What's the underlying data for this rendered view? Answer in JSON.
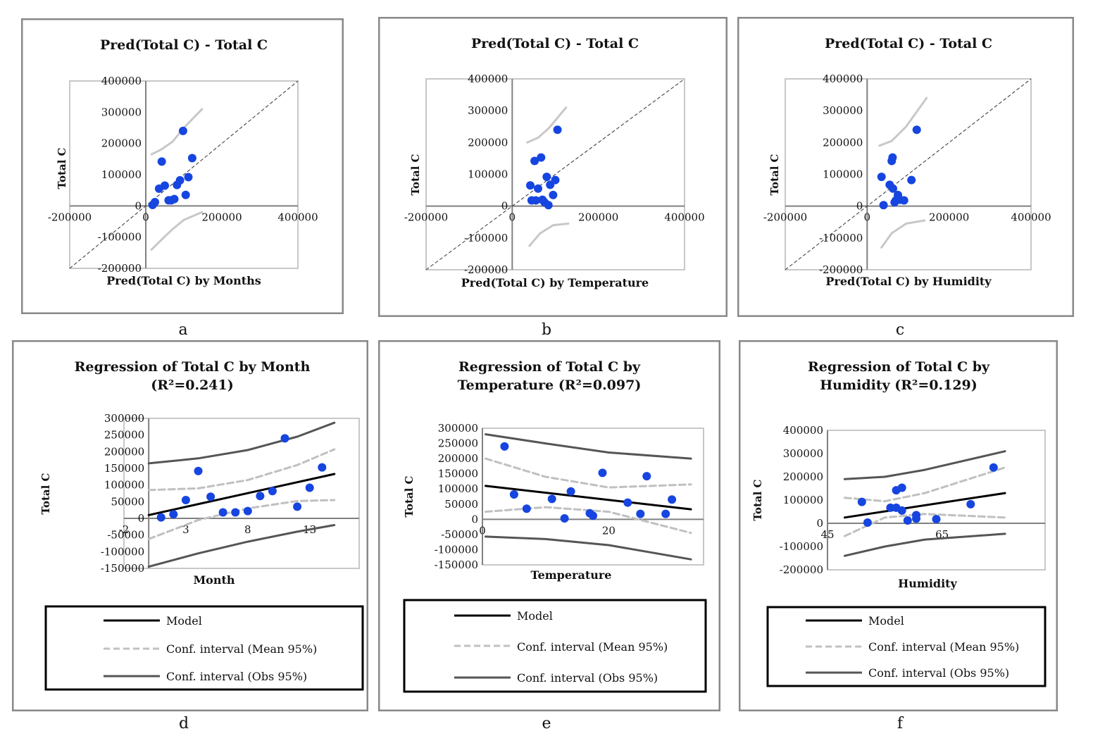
{
  "panels": [
    {
      "id": "a",
      "caption": "a",
      "kind": "pred",
      "title_lines": [
        "Pred(Total C) - Total C"
      ],
      "xlabel": "Pred(Total C)  by Months",
      "ylabel": "Total C",
      "x_ticks": [
        "-200000",
        "0",
        "200000",
        "400000"
      ],
      "y_ticks": [
        "400000",
        "300000",
        "200000",
        "100000",
        "0",
        "-100000",
        "-200000"
      ]
    },
    {
      "id": "b",
      "caption": "b",
      "kind": "pred",
      "title_lines": [
        "Pred(Total C) - Total C"
      ],
      "xlabel": "Pred(Total C) by Temperature",
      "ylabel": "Total C",
      "x_ticks": [
        "-200000",
        "0",
        "200000",
        "400000"
      ],
      "y_ticks": [
        "400000",
        "300000",
        "200000",
        "100000",
        "0",
        "-100000",
        "-200000"
      ]
    },
    {
      "id": "c",
      "caption": "c",
      "kind": "pred",
      "title_lines": [
        "Pred(Total C) - Total C"
      ],
      "xlabel": "Pred(Total C) by Humidity",
      "ylabel": "Total C",
      "x_ticks": [
        "-200000",
        "0",
        "200000",
        "400000"
      ],
      "y_ticks": [
        "400000",
        "300000",
        "200000",
        "100000",
        "0",
        "-100000",
        "-200000"
      ]
    },
    {
      "id": "d",
      "caption": "d",
      "kind": "reg",
      "title_lines": [
        "Regression of Total C by Month",
        "(R²=0.241)"
      ],
      "xlabel": "Month",
      "ylabel": "Total C",
      "x_ticks": [
        "-2",
        "3",
        "8",
        "13"
      ],
      "y_ticks": [
        "300000",
        "250000",
        "200000",
        "150000",
        "100000",
        "50000",
        "0",
        "-50000",
        "-100000",
        "-150000"
      ],
      "legend": [
        "Model",
        "Conf. interval (Mean 95%)",
        "Conf. interval (Obs 95%)"
      ]
    },
    {
      "id": "e",
      "caption": "e",
      "kind": "reg",
      "title_lines": [
        "Regression of Total C by",
        "Temperature (R²=0.097)"
      ],
      "xlabel": "Temperature",
      "ylabel": "Total C",
      "x_ticks": [
        "0",
        "20"
      ],
      "y_ticks": [
        "300000",
        "250000",
        "200000",
        "150000",
        "100000",
        "50000",
        "0",
        "-50000",
        "-100000",
        "-150000"
      ],
      "legend": [
        "Model",
        "Conf. interval (Mean 95%)",
        "Conf. interval (Obs 95%)"
      ]
    },
    {
      "id": "f",
      "caption": "f",
      "kind": "reg",
      "title_lines": [
        "Regression of Total C by",
        "Humidity (R²=0.129)"
      ],
      "xlabel": "Humidity",
      "ylabel": "Total C",
      "x_ticks": [
        "45",
        "65"
      ],
      "y_ticks": [
        "400000",
        "300000",
        "200000",
        "100000",
        "0",
        "-100000",
        "-200000"
      ],
      "legend": [
        "Model",
        "Conf. interval (Mean 95%)",
        "Conf. interval (Obs 95%)"
      ]
    }
  ],
  "colors": {
    "points": "#1645e0",
    "model": "#000000",
    "mean_ci": "#c0c0c0",
    "obs_ci": "#555555",
    "pred_ci": "#c8c8c8"
  },
  "chart_data": [
    {
      "panel": "a",
      "type": "scatter",
      "title": "Pred(Total C) - Total C",
      "xlabel": "Pred(Total C)  by Months",
      "ylabel": "Total C",
      "xlim": [
        -200000,
        400000
      ],
      "ylim": [
        -200000,
        400000
      ],
      "grid": false,
      "reference_line": "y = x (dashed)",
      "points": [
        {
          "x": 18000,
          "y": 3000
        },
        {
          "x": 24000,
          "y": 12000
        },
        {
          "x": 35000,
          "y": 55000
        },
        {
          "x": 42000,
          "y": 142000
        },
        {
          "x": 50000,
          "y": 65000
        },
        {
          "x": 60000,
          "y": 18000
        },
        {
          "x": 67000,
          "y": 18000
        },
        {
          "x": 75000,
          "y": 22000
        },
        {
          "x": 82000,
          "y": 67000
        },
        {
          "x": 90000,
          "y": 82000
        },
        {
          "x": 98000,
          "y": 240000
        },
        {
          "x": 105000,
          "y": 35000
        },
        {
          "x": 112000,
          "y": 92000
        },
        {
          "x": 122000,
          "y": 153000
        }
      ],
      "ci_upper": [
        {
          "x": 15000,
          "y": 165000
        },
        {
          "x": 40000,
          "y": 180000
        },
        {
          "x": 70000,
          "y": 205000
        },
        {
          "x": 100000,
          "y": 250000
        },
        {
          "x": 148000,
          "y": 310000
        }
      ],
      "ci_lower": [
        {
          "x": 15000,
          "y": -140000
        },
        {
          "x": 40000,
          "y": -110000
        },
        {
          "x": 70000,
          "y": -75000
        },
        {
          "x": 100000,
          "y": -45000
        },
        {
          "x": 148000,
          "y": -20000
        }
      ]
    },
    {
      "panel": "b",
      "type": "scatter",
      "title": "Pred(Total C) - Total C",
      "xlabel": "Pred(Total C) by Temperature",
      "ylabel": "Total C",
      "xlim": [
        -200000,
        400000
      ],
      "ylim": [
        -200000,
        400000
      ],
      "grid": false,
      "reference_line": "y = x (dashed)",
      "points": [
        {
          "x": 42000,
          "y": 65000
        },
        {
          "x": 45000,
          "y": 18000
        },
        {
          "x": 52000,
          "y": 142000
        },
        {
          "x": 55000,
          "y": 18000
        },
        {
          "x": 60000,
          "y": 55000
        },
        {
          "x": 67000,
          "y": 153000
        },
        {
          "x": 70000,
          "y": 20000
        },
        {
          "x": 75000,
          "y": 12000
        },
        {
          "x": 80000,
          "y": 92000
        },
        {
          "x": 84000,
          "y": 3000
        },
        {
          "x": 88000,
          "y": 67000
        },
        {
          "x": 95000,
          "y": 35000
        },
        {
          "x": 100000,
          "y": 82000
        },
        {
          "x": 105000,
          "y": 240000
        }
      ],
      "ci_upper": [
        {
          "x": 35000,
          "y": 200000
        },
        {
          "x": 60000,
          "y": 215000
        },
        {
          "x": 85000,
          "y": 245000
        },
        {
          "x": 125000,
          "y": 310000
        }
      ],
      "ci_lower": [
        {
          "x": 40000,
          "y": -125000
        },
        {
          "x": 65000,
          "y": -85000
        },
        {
          "x": 95000,
          "y": -60000
        },
        {
          "x": 130000,
          "y": -55000
        }
      ]
    },
    {
      "panel": "c",
      "type": "scatter",
      "title": "Pred(Total C) - Total C",
      "xlabel": "Pred(Total C) by Humidity",
      "ylabel": "Total C",
      "xlim": [
        -200000,
        400000
      ],
      "ylim": [
        -200000,
        400000
      ],
      "grid": false,
      "reference_line": "y = x (dashed)",
      "points": [
        {
          "x": 35000,
          "y": 92000
        },
        {
          "x": 40000,
          "y": 3000
        },
        {
          "x": 55000,
          "y": 67000
        },
        {
          "x": 60000,
          "y": 142000
        },
        {
          "x": 62000,
          "y": 153000
        },
        {
          "x": 63000,
          "y": 55000
        },
        {
          "x": 67000,
          "y": 12000
        },
        {
          "x": 70000,
          "y": 18000
        },
        {
          "x": 75000,
          "y": 35000
        },
        {
          "x": 80000,
          "y": 20000
        },
        {
          "x": 90000,
          "y": 18000
        },
        {
          "x": 108000,
          "y": 82000
        },
        {
          "x": 121000,
          "y": 240000
        }
      ],
      "ci_upper": [
        {
          "x": 30000,
          "y": 190000
        },
        {
          "x": 60000,
          "y": 205000
        },
        {
          "x": 95000,
          "y": 250000
        },
        {
          "x": 145000,
          "y": 340000
        }
      ],
      "ci_lower": [
        {
          "x": 35000,
          "y": -130000
        },
        {
          "x": 60000,
          "y": -85000
        },
        {
          "x": 95000,
          "y": -55000
        },
        {
          "x": 140000,
          "y": -45000
        }
      ]
    },
    {
      "panel": "d",
      "type": "scatter",
      "title": "Regression of Total C by Month (R²=0.241)",
      "xlabel": "Month",
      "ylabel": "Total C",
      "xlim": [
        -2,
        17
      ],
      "ylim": [
        -150000,
        300000
      ],
      "grid": false,
      "legend_position": "bottom",
      "points": [
        {
          "x": 1,
          "y": 3000
        },
        {
          "x": 2,
          "y": 12000
        },
        {
          "x": 3,
          "y": 55000
        },
        {
          "x": 4,
          "y": 142000
        },
        {
          "x": 5,
          "y": 65000
        },
        {
          "x": 6,
          "y": 18000
        },
        {
          "x": 7,
          "y": 18000
        },
        {
          "x": 8,
          "y": 22000
        },
        {
          "x": 9,
          "y": 67000
        },
        {
          "x": 10,
          "y": 82000
        },
        {
          "x": 11,
          "y": 240000
        },
        {
          "x": 12,
          "y": 35000
        },
        {
          "x": 13,
          "y": 92000
        },
        {
          "x": 14,
          "y": 153000
        }
      ],
      "model": [
        {
          "x": 0,
          "y": 10000
        },
        {
          "x": 15,
          "y": 133000
        }
      ],
      "mean_ci_upper": [
        {
          "x": 0,
          "y": 85000
        },
        {
          "x": 4,
          "y": 90000
        },
        {
          "x": 8,
          "y": 115000
        },
        {
          "x": 12,
          "y": 160000
        },
        {
          "x": 15,
          "y": 207000
        }
      ],
      "mean_ci_lower": [
        {
          "x": 0,
          "y": -62000
        },
        {
          "x": 4,
          "y": -5000
        },
        {
          "x": 8,
          "y": 30000
        },
        {
          "x": 12,
          "y": 52000
        },
        {
          "x": 15,
          "y": 55000
        }
      ],
      "obs_ci_upper": [
        {
          "x": 0,
          "y": 165000
        },
        {
          "x": 4,
          "y": 180000
        },
        {
          "x": 8,
          "y": 205000
        },
        {
          "x": 12,
          "y": 245000
        },
        {
          "x": 15,
          "y": 287000
        }
      ],
      "obs_ci_lower": [
        {
          "x": 0,
          "y": -145000
        },
        {
          "x": 4,
          "y": -105000
        },
        {
          "x": 8,
          "y": -70000
        },
        {
          "x": 12,
          "y": -40000
        },
        {
          "x": 15,
          "y": -20000
        }
      ]
    },
    {
      "panel": "e",
      "type": "scatter",
      "title": "Regression of Total C by Temperature (R²=0.097)",
      "xlabel": "Temperature",
      "ylabel": "Total C",
      "xlim": [
        0,
        35
      ],
      "ylim": [
        -150000,
        300000
      ],
      "grid": false,
      "legend_position": "bottom",
      "points": [
        {
          "x": 3.5,
          "y": 240000
        },
        {
          "x": 5,
          "y": 82000
        },
        {
          "x": 7,
          "y": 35000
        },
        {
          "x": 11,
          "y": 67000
        },
        {
          "x": 13,
          "y": 3000
        },
        {
          "x": 14,
          "y": 92000
        },
        {
          "x": 17,
          "y": 20000
        },
        {
          "x": 17.5,
          "y": 12000
        },
        {
          "x": 19,
          "y": 153000
        },
        {
          "x": 23,
          "y": 55000
        },
        {
          "x": 25,
          "y": 18000
        },
        {
          "x": 26,
          "y": 142000
        },
        {
          "x": 29,
          "y": 18000
        },
        {
          "x": 30,
          "y": 65000
        }
      ],
      "model": [
        {
          "x": 0.5,
          "y": 110000
        },
        {
          "x": 33,
          "y": 33000
        }
      ],
      "mean_ci_upper": [
        {
          "x": 0.5,
          "y": 200000
        },
        {
          "x": 10,
          "y": 140000
        },
        {
          "x": 20,
          "y": 105000
        },
        {
          "x": 33,
          "y": 115000
        }
      ],
      "mean_ci_lower": [
        {
          "x": 0.5,
          "y": 25000
        },
        {
          "x": 10,
          "y": 40000
        },
        {
          "x": 20,
          "y": 25000
        },
        {
          "x": 33,
          "y": -45000
        }
      ],
      "obs_ci_upper": [
        {
          "x": 0.5,
          "y": 280000
        },
        {
          "x": 10,
          "y": 250000
        },
        {
          "x": 20,
          "y": 220000
        },
        {
          "x": 33,
          "y": 200000
        }
      ],
      "obs_ci_lower": [
        {
          "x": 0.5,
          "y": -57000
        },
        {
          "x": 10,
          "y": -65000
        },
        {
          "x": 20,
          "y": -85000
        },
        {
          "x": 33,
          "y": -132000
        }
      ]
    },
    {
      "panel": "f",
      "type": "scatter",
      "title": "Regression of Total C by Humidity (R²=0.129)",
      "xlabel": "Humidity",
      "ylabel": "Total C",
      "xlim": [
        45,
        83
      ],
      "ylim": [
        -200000,
        400000
      ],
      "grid": false,
      "legend_position": "bottom",
      "points": [
        {
          "x": 51,
          "y": 92000
        },
        {
          "x": 52,
          "y": 3000
        },
        {
          "x": 56,
          "y": 67000
        },
        {
          "x": 57,
          "y": 142000
        },
        {
          "x": 57,
          "y": 67000
        },
        {
          "x": 58,
          "y": 153000
        },
        {
          "x": 58,
          "y": 55000
        },
        {
          "x": 59,
          "y": 12000
        },
        {
          "x": 60.5,
          "y": 35000
        },
        {
          "x": 60.5,
          "y": 20000
        },
        {
          "x": 64,
          "y": 18000
        },
        {
          "x": 70,
          "y": 82000
        },
        {
          "x": 74,
          "y": 240000
        }
      ],
      "model": [
        {
          "x": 48,
          "y": 25000
        },
        {
          "x": 76,
          "y": 130000
        }
      ],
      "mean_ci_upper": [
        {
          "x": 48,
          "y": 110000
        },
        {
          "x": 55,
          "y": 95000
        },
        {
          "x": 62,
          "y": 130000
        },
        {
          "x": 76,
          "y": 240000
        }
      ],
      "mean_ci_lower": [
        {
          "x": 48,
          "y": -55000
        },
        {
          "x": 55,
          "y": 25000
        },
        {
          "x": 62,
          "y": 40000
        },
        {
          "x": 76,
          "y": 25000
        }
      ],
      "obs_ci_upper": [
        {
          "x": 48,
          "y": 190000
        },
        {
          "x": 55,
          "y": 200000
        },
        {
          "x": 62,
          "y": 230000
        },
        {
          "x": 76,
          "y": 310000
        }
      ],
      "obs_ci_lower": [
        {
          "x": 48,
          "y": -140000
        },
        {
          "x": 55,
          "y": -100000
        },
        {
          "x": 62,
          "y": -70000
        },
        {
          "x": 76,
          "y": -45000
        }
      ]
    }
  ]
}
